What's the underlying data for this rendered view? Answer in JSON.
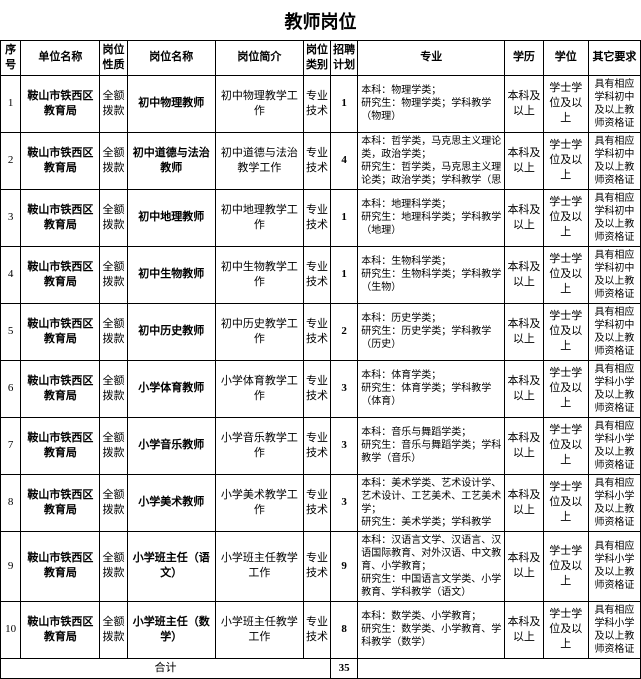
{
  "title": "教师岗位",
  "headers": {
    "idx": "序号",
    "unit": "单位名称",
    "nature": "岗位性质",
    "post": "岗位名称",
    "desc": "岗位简介",
    "cat": "岗位类别",
    "plan": "招聘计划",
    "major": "专业",
    "edu": "学历",
    "deg": "学位",
    "other": "其它要求"
  },
  "common": {
    "unit": "鞍山市铁西区教育局",
    "nature": "全额拨款",
    "cat": "专业技术",
    "edu": "本科及以上",
    "deg": "学士学位及以上"
  },
  "rows": [
    {
      "idx": "1",
      "post": "初中物理教师",
      "desc": "初中物理教学工作",
      "plan": "1",
      "major": "本科：物理学类；\n研究生：物理学类；学科教学（物理）",
      "other": "具有相应学科初中及以上教师资格证"
    },
    {
      "idx": "2",
      "post": "初中道德与法治教师",
      "desc": "初中道德与法治教学工作",
      "plan": "4",
      "major": "本科：哲学类，马克思主义理论类，政治学类；\n研究生：哲学类，马克思主义理论类；政治学类；学科教学（思",
      "other": "具有相应学科初中及以上教师资格证"
    },
    {
      "idx": "3",
      "post": "初中地理教师",
      "desc": "初中地理教学工作",
      "plan": "1",
      "major": "本科：地理科学类；\n研究生：地理科学类；学科教学（地理）",
      "other": "具有相应学科初中及以上教师资格证"
    },
    {
      "idx": "4",
      "post": "初中生物教师",
      "desc": "初中生物教学工作",
      "plan": "1",
      "major": "本科：生物科学类；\n研究生：生物科学类；学科教学（生物）",
      "other": "具有相应学科初中及以上教师资格证"
    },
    {
      "idx": "5",
      "post": "初中历史教师",
      "desc": "初中历史教学工作",
      "plan": "2",
      "major": "本科：历史学类；\n研究生：历史学类；学科教学（历史）",
      "other": "具有相应学科初中及以上教师资格证"
    },
    {
      "idx": "6",
      "post": "小学体育教师",
      "desc": "小学体育教学工作",
      "plan": "3",
      "major": "本科：体育学类；\n研究生：体育学类；学科教学（体育）",
      "other": "具有相应学科小学及以上教师资格证"
    },
    {
      "idx": "7",
      "post": "小学音乐教师",
      "desc": "小学音乐教学工作",
      "plan": "3",
      "major": "本科：音乐与舞蹈学类；\n研究生：音乐与舞蹈学类；学科教学（音乐）",
      "other": "具有相应学科小学及以上教师资格证"
    },
    {
      "idx": "8",
      "post": "小学美术教师",
      "desc": "小学美术教学工作",
      "plan": "3",
      "major": "本科：美术学类、艺术设计学、艺术设计、工艺美术、工艺美术学；\n研究生：美术学类；学科教学",
      "other": "具有相应学科小学及以上教师资格证"
    },
    {
      "idx": "9",
      "post": "小学班主任（语文）",
      "desc": "小学班主任教学工作",
      "plan": "9",
      "major": "本科：汉语言文学、汉语言、汉语国际教育、对外汉语、中文教育、小学教育；\n研究生：中国语言文学类、小学教育、学科教学（语文）",
      "other": "具有相应学科小学及以上教师资格证"
    },
    {
      "idx": "10",
      "post": "小学班主任（数学）",
      "desc": "小学班主任教学工作",
      "plan": "8",
      "major": "本科：数学类、小学教育；\n研究生：数学类、小学教育、学科教学（数学）",
      "other": "具有相应学科小学及以上教师资格证"
    }
  ],
  "footer": {
    "label": "合计",
    "total": "35"
  }
}
